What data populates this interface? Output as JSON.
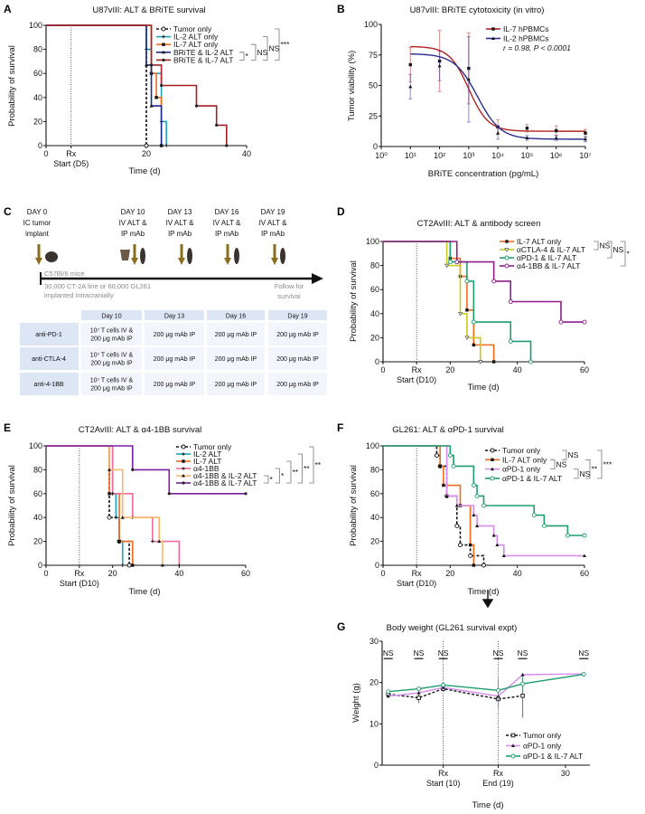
{
  "panels": [
    "A",
    "B",
    "C",
    "D",
    "E",
    "F",
    "G"
  ],
  "schematic": {
    "title_steps": [
      {
        "lines": [
          "DAY 0",
          "IC tumor",
          "implant"
        ]
      },
      {
        "lines": [
          "DAY 10",
          "IV ALT &",
          "IP mAb"
        ]
      },
      {
        "lines": [
          "DAY 13",
          "IV ALT &",
          "IP mAb"
        ]
      },
      {
        "lines": [
          "DAY 16",
          "IV ALT &",
          "IP mAb"
        ]
      },
      {
        "lines": [
          "DAY 19",
          "IV ALT &",
          "IP mAb"
        ]
      }
    ],
    "strain": "C57Bl/6 mice",
    "implant_note": [
      "30,000 CT-2A line or 60,000 GL261",
      "implanted intracranially"
    ],
    "follow": [
      "Follow for",
      "survival"
    ],
    "arrow_color": "#8A6D1E",
    "table": {
      "columns": [
        "Day 10",
        "Day 13",
        "Day 16",
        "Day 19"
      ],
      "rows": [
        {
          "label": "anti-PD-1",
          "cells": [
            [
              "10⁷ T cells IV &",
              "200 μg mAb IP"
            ],
            [
              "200 μg mAb IP"
            ],
            [
              "200 μg mAb IP"
            ],
            [
              "200 μg mAb IP"
            ]
          ]
        },
        {
          "label": "anti-CTLA-4",
          "cells": [
            [
              "10⁷ T cells IV &",
              "200 μg mAb IP"
            ],
            [
              "200 μg mAb IP"
            ],
            [
              "200 μg mAb IP"
            ],
            [
              "200 μg mAb IP"
            ]
          ]
        },
        {
          "label": "anti-4-1BB",
          "cells": [
            [
              "10⁷ T cells IV &",
              "200 μg mAb IP"
            ],
            [
              "200 μg mAb IP"
            ],
            [
              "200 μg mAb IP"
            ],
            [
              "200 μg mAb IP"
            ]
          ]
        }
      ]
    }
  },
  "chart_data": [
    {
      "panel": "A",
      "type": "line",
      "subtype": "kaplan-meier",
      "title": "U87vIII: ALT & BRiTE survival",
      "xlabel": "Time (d)",
      "ylabel": "Probability of survival",
      "xlim": [
        0,
        40
      ],
      "ylim": [
        0,
        100
      ],
      "xticks": [
        0,
        20,
        40
      ],
      "yticks": [
        0,
        20,
        40,
        60,
        80,
        100
      ],
      "rx": {
        "value": 5,
        "label": "Rx",
        "sublabel": "Start (D5)"
      },
      "legend": "top-right",
      "series": [
        {
          "name": "Tumor only",
          "color": "#111111",
          "dashed": true,
          "marker": "circle-open",
          "steps": [
            [
              20,
              0
            ]
          ]
        },
        {
          "name": "IL-2 ALT only",
          "color": "#1FA3C0",
          "marker": "plus",
          "steps": [
            [
              20,
              80
            ],
            [
              21,
              60
            ],
            [
              23,
              20
            ],
            [
              24,
              0
            ]
          ]
        },
        {
          "name": "IL-7 ALT only",
          "color": "#F26B1D",
          "marker": "square",
          "steps": [
            [
              21,
              60
            ],
            [
              22,
              40
            ],
            [
              23,
              0
            ]
          ]
        },
        {
          "name": "BRiTE & IL-2 ALT",
          "color": "#1C2A8C",
          "marker": "triangle",
          "steps": [
            [
              20,
              67
            ],
            [
              21,
              33
            ],
            [
              23,
              0
            ]
          ]
        },
        {
          "name": "BRiTE & IL-7 ALT",
          "color": "#A31F24",
          "marker": "dot",
          "steps": [
            [
              21,
              67
            ],
            [
              23,
              50
            ],
            [
              30,
              33
            ],
            [
              34,
              17
            ],
            [
              36,
              0
            ]
          ]
        }
      ],
      "significance": [
        {
          "groups": [
            3,
            4
          ],
          "label": "*"
        },
        {
          "groups": [
            2,
            4
          ],
          "label": "NS"
        },
        {
          "groups": [
            1,
            4
          ],
          "label": "NS"
        },
        {
          "groups": [
            0,
            4
          ],
          "label": "***"
        }
      ]
    },
    {
      "panel": "B",
      "type": "scatter",
      "subtype": "dose-response",
      "title": "U87vIII: BRiTE cytotoxicity (in vitro)",
      "xlabel": "BRiTE concentration (pg/mL)",
      "ylabel": "Tumor viability (%)",
      "xscale": "log",
      "xlim": [
        1,
        10000000
      ],
      "ylim": [
        0,
        100
      ],
      "xtick_labels": [
        "10⁰",
        "10¹",
        "10²",
        "10³",
        "10⁴",
        "10⁵",
        "10⁶",
        "10⁷"
      ],
      "yticks": [
        0,
        25,
        50,
        75,
        100
      ],
      "legend": "top-right",
      "annotation": "r = 0.98, P < 0.0001",
      "series": [
        {
          "name": "IL-7 hPBMCs",
          "color": "#B22222",
          "marker": "square",
          "x": [
            10,
            100,
            1000,
            10000,
            100000,
            1000000,
            10000000
          ],
          "y": [
            67,
            70,
            64,
            16,
            15,
            13,
            11
          ],
          "err": [
            14,
            25,
            29,
            6,
            3,
            4,
            3
          ],
          "fit": {
            "top": 82,
            "bottom": 12.5,
            "log_ec50": 3.0,
            "hill": 1.3
          }
        },
        {
          "name": "IL-2 hPBMCs",
          "color": "#2B2E8F",
          "marker": "triangle",
          "x": [
            10,
            100,
            1000,
            10000,
            100000,
            1000000,
            10000000
          ],
          "y": [
            49,
            66,
            55,
            11,
            7,
            7,
            6
          ],
          "err": [
            10,
            12,
            35,
            5,
            2,
            2,
            2
          ],
          "fit": {
            "top": 76,
            "bottom": 6,
            "log_ec50": 3.3,
            "hill": 1.1
          }
        }
      ]
    },
    {
      "panel": "D",
      "type": "line",
      "subtype": "kaplan-meier",
      "title": "CT2AvIII: ALT & antibody screen",
      "xlabel": "Time (d)",
      "ylabel": "Probability of survival",
      "xlim": [
        0,
        60
      ],
      "ylim": [
        0,
        100
      ],
      "xticks": [
        0,
        20,
        40,
        60
      ],
      "yticks": [
        0,
        20,
        40,
        60,
        80,
        100
      ],
      "rx": {
        "value": 10,
        "label": "Rx",
        "sublabel": "Start (D10)"
      },
      "legend": "top-right",
      "series": [
        {
          "name": "IL-7 ALT only",
          "color": "#F26B1D",
          "marker": "square",
          "steps": [
            [
              20,
              86
            ],
            [
              23,
              71
            ],
            [
              25,
              43
            ],
            [
              27,
              14
            ],
            [
              33,
              0
            ]
          ]
        },
        {
          "name": "αCTLA-4 & IL-7 ALT",
          "color": "#C8C81E",
          "marker": "triangle-down",
          "steps": [
            [
              19,
              80
            ],
            [
              23,
              40
            ],
            [
              25,
              20
            ],
            [
              29,
              0
            ]
          ]
        },
        {
          "name": "αPD-1 & IL-7 ALT",
          "color": "#1E9E6E",
          "marker": "circle-open",
          "steps": [
            [
              20,
              83
            ],
            [
              25,
              67
            ],
            [
              27,
              33
            ],
            [
              38,
              17
            ],
            [
              44,
              0
            ]
          ]
        },
        {
          "name": "α4-1BB & IL-7 ALT",
          "color": "#8B1E8B",
          "marker": "circle-open",
          "steps": [
            [
              22,
              83
            ],
            [
              33,
              67
            ],
            [
              38,
              50
            ],
            [
              53,
              33
            ]
          ],
          "end": 60
        }
      ],
      "significance": [
        {
          "groups": [
            0,
            1
          ],
          "label": "NS"
        },
        {
          "groups": [
            0,
            2
          ],
          "label": "NS"
        },
        {
          "groups": [
            0,
            3
          ],
          "label": "*"
        }
      ]
    },
    {
      "panel": "E",
      "type": "line",
      "subtype": "kaplan-meier",
      "title": "CT2AvIII: ALT & α4-1BB survival",
      "xlabel": "Time (d)",
      "ylabel": "Probability of survival",
      "xlim": [
        0,
        60
      ],
      "ylim": [
        0,
        100
      ],
      "xticks": [
        0,
        20,
        40,
        60
      ],
      "yticks": [
        0,
        20,
        40,
        60,
        80,
        100
      ],
      "rx": {
        "value": 10,
        "label": "Rx",
        "sublabel": "Start (D10)"
      },
      "legend": "top-right",
      "series": [
        {
          "name": "Tumor only",
          "color": "#111111",
          "dashed": true,
          "marker": "circle-open",
          "steps": [
            [
              19,
              40
            ],
            [
              22,
              20
            ],
            [
              25,
              0
            ]
          ]
        },
        {
          "name": "IL-2 ALT",
          "color": "#1FA3C0",
          "marker": "plus",
          "steps": [
            [
              20,
              60
            ],
            [
              21,
              40
            ],
            [
              22,
              20
            ],
            [
              23,
              0
            ]
          ]
        },
        {
          "name": "IL-7 ALT",
          "color": "#F26B1D",
          "marker": "square",
          "steps": [
            [
              19,
              60
            ],
            [
              22,
              20
            ],
            [
              26,
              0
            ]
          ]
        },
        {
          "name": "α4-1BB",
          "color": "#F06A9A",
          "marker": "plus",
          "steps": [
            [
              20,
              60
            ],
            [
              26,
              40
            ],
            [
              32,
              20
            ],
            [
              40,
              0
            ]
          ]
        },
        {
          "name": "α4-1BB & IL-2 ALT",
          "color": "#FBB46A",
          "marker": "triangle",
          "steps": [
            [
              19,
              80
            ],
            [
              23,
              40
            ],
            [
              34,
              20
            ],
            [
              35,
              0
            ]
          ]
        },
        {
          "name": "α4-1BB & IL-7 ALT",
          "color": "#7A1FA2",
          "marker": "dot",
          "steps": [
            [
              26,
              80
            ],
            [
              37,
              60
            ]
          ],
          "end": 60
        }
      ],
      "significance": [
        {
          "groups": [
            4,
            5
          ],
          "label": "*"
        },
        {
          "groups": [
            3,
            5
          ],
          "label": "*"
        },
        {
          "groups": [
            2,
            5
          ],
          "label": "**"
        },
        {
          "groups": [
            1,
            5
          ],
          "label": "**"
        },
        {
          "groups": [
            0,
            5
          ],
          "label": "**"
        }
      ]
    },
    {
      "panel": "F",
      "type": "line",
      "subtype": "kaplan-meier",
      "title": "GL261: ALT & αPD-1 survival",
      "xlabel": "Time (d)",
      "ylabel": "Probability of survival",
      "xlim": [
        0,
        60
      ],
      "ylim": [
        0,
        100
      ],
      "xticks": [
        0,
        20,
        40,
        60
      ],
      "yticks": [
        0,
        20,
        40,
        60,
        80,
        100
      ],
      "rx": {
        "value": 10,
        "label": "Rx",
        "sublabel": "Start (D10)"
      },
      "legend": "top-right",
      "series": [
        {
          "name": "Tumor only",
          "color": "#111111",
          "dashed": true,
          "marker": "circle-open",
          "steps": [
            [
              16,
              92
            ],
            [
              17,
              83
            ],
            [
              19,
              58
            ],
            [
              22,
              33
            ],
            [
              23,
              17
            ],
            [
              26,
              8
            ],
            [
              30,
              0
            ]
          ]
        },
        {
          "name": "IL-7 ALT only",
          "color": "#F26B1D",
          "marker": "square",
          "steps": [
            [
              17,
              83
            ],
            [
              18,
              67
            ],
            [
              23,
              50
            ],
            [
              26,
              17
            ],
            [
              27,
              0
            ]
          ]
        },
        {
          "name": "αPD-1 only",
          "color": "#D98CF0",
          "marker": "triangle",
          "steps": [
            [
              19,
              58
            ],
            [
              22,
              50
            ],
            [
              27,
              42
            ],
            [
              28,
              33
            ],
            [
              33,
              25
            ],
            [
              34,
              17
            ],
            [
              36,
              8
            ]
          ],
          "end": 60
        },
        {
          "name": "αPD-1 & IL-7 ALT",
          "color": "#1E9E6E",
          "marker": "circle-open",
          "steps": [
            [
              20,
              92
            ],
            [
              21,
              83
            ],
            [
              27,
              67
            ],
            [
              28,
              58
            ],
            [
              30,
              50
            ],
            [
              45,
              42
            ],
            [
              48,
              33
            ],
            [
              55,
              25
            ]
          ],
          "end": 60
        }
      ],
      "significance": [
        {
          "groups": [
            1,
            2
          ],
          "label": "NS"
        },
        {
          "groups": [
            0,
            1
          ],
          "label": "NS"
        },
        {
          "groups": [
            2,
            3
          ],
          "label": "NS"
        },
        {
          "groups": [
            1,
            3
          ],
          "label": "**"
        },
        {
          "groups": [
            0,
            3
          ],
          "label": "***"
        }
      ]
    },
    {
      "panel": "G",
      "type": "line",
      "title": "Body weight (GL261 survival expt)",
      "xlabel": "Time (d)",
      "ylabel": "Weight (g)",
      "xlim": [
        0,
        34
      ],
      "ylim": [
        0,
        30
      ],
      "xticks": [
        30
      ],
      "yticks": [
        0,
        10,
        20,
        30
      ],
      "rx_lines": [
        {
          "value": 10,
          "label": "Rx",
          "sublabel": "Start (10)"
        },
        {
          "value": 19,
          "label": "Rx",
          "sublabel": "End (19)"
        }
      ],
      "ns_labels": [
        {
          "day": 1,
          "label": "NS"
        },
        {
          "day": 6,
          "label": "NS"
        },
        {
          "day": 10,
          "label": "NS"
        },
        {
          "day": 19,
          "label": "NS"
        },
        {
          "day": 23,
          "label": "NS"
        },
        {
          "day": 33,
          "label": "NS"
        }
      ],
      "legend": "bottom-right",
      "series": [
        {
          "name": "Tumor only",
          "color": "#111111",
          "dashed": true,
          "marker": "square-open",
          "x": [
            1,
            6,
            10,
            19,
            23
          ],
          "y": [
            17.2,
            16.3,
            18.5,
            16.0,
            16.8
          ],
          "err": [
            0.6,
            1.3,
            0.6,
            2,
            5.3
          ]
        },
        {
          "name": "αPD-1 only",
          "color": "#D98CF0",
          "marker": "triangle",
          "x": [
            1,
            6,
            10,
            19,
            23,
            33
          ],
          "y": [
            16.7,
            17.5,
            18.8,
            16.7,
            21.9,
            22.1
          ],
          "err": [
            0.4,
            0.5,
            0.6,
            4.2,
            0.5,
            0.3
          ]
        },
        {
          "name": "αPD-1 & IL-7 ALT",
          "color": "#1E9E6E",
          "marker": "circle-open",
          "x": [
            1,
            6,
            10,
            19,
            23,
            33
          ],
          "y": [
            17.8,
            18.5,
            19.4,
            18.1,
            19.7,
            22.0
          ],
          "err": [
            0.4,
            0.4,
            0.6,
            2.8,
            1.6,
            0.3
          ]
        }
      ]
    }
  ]
}
